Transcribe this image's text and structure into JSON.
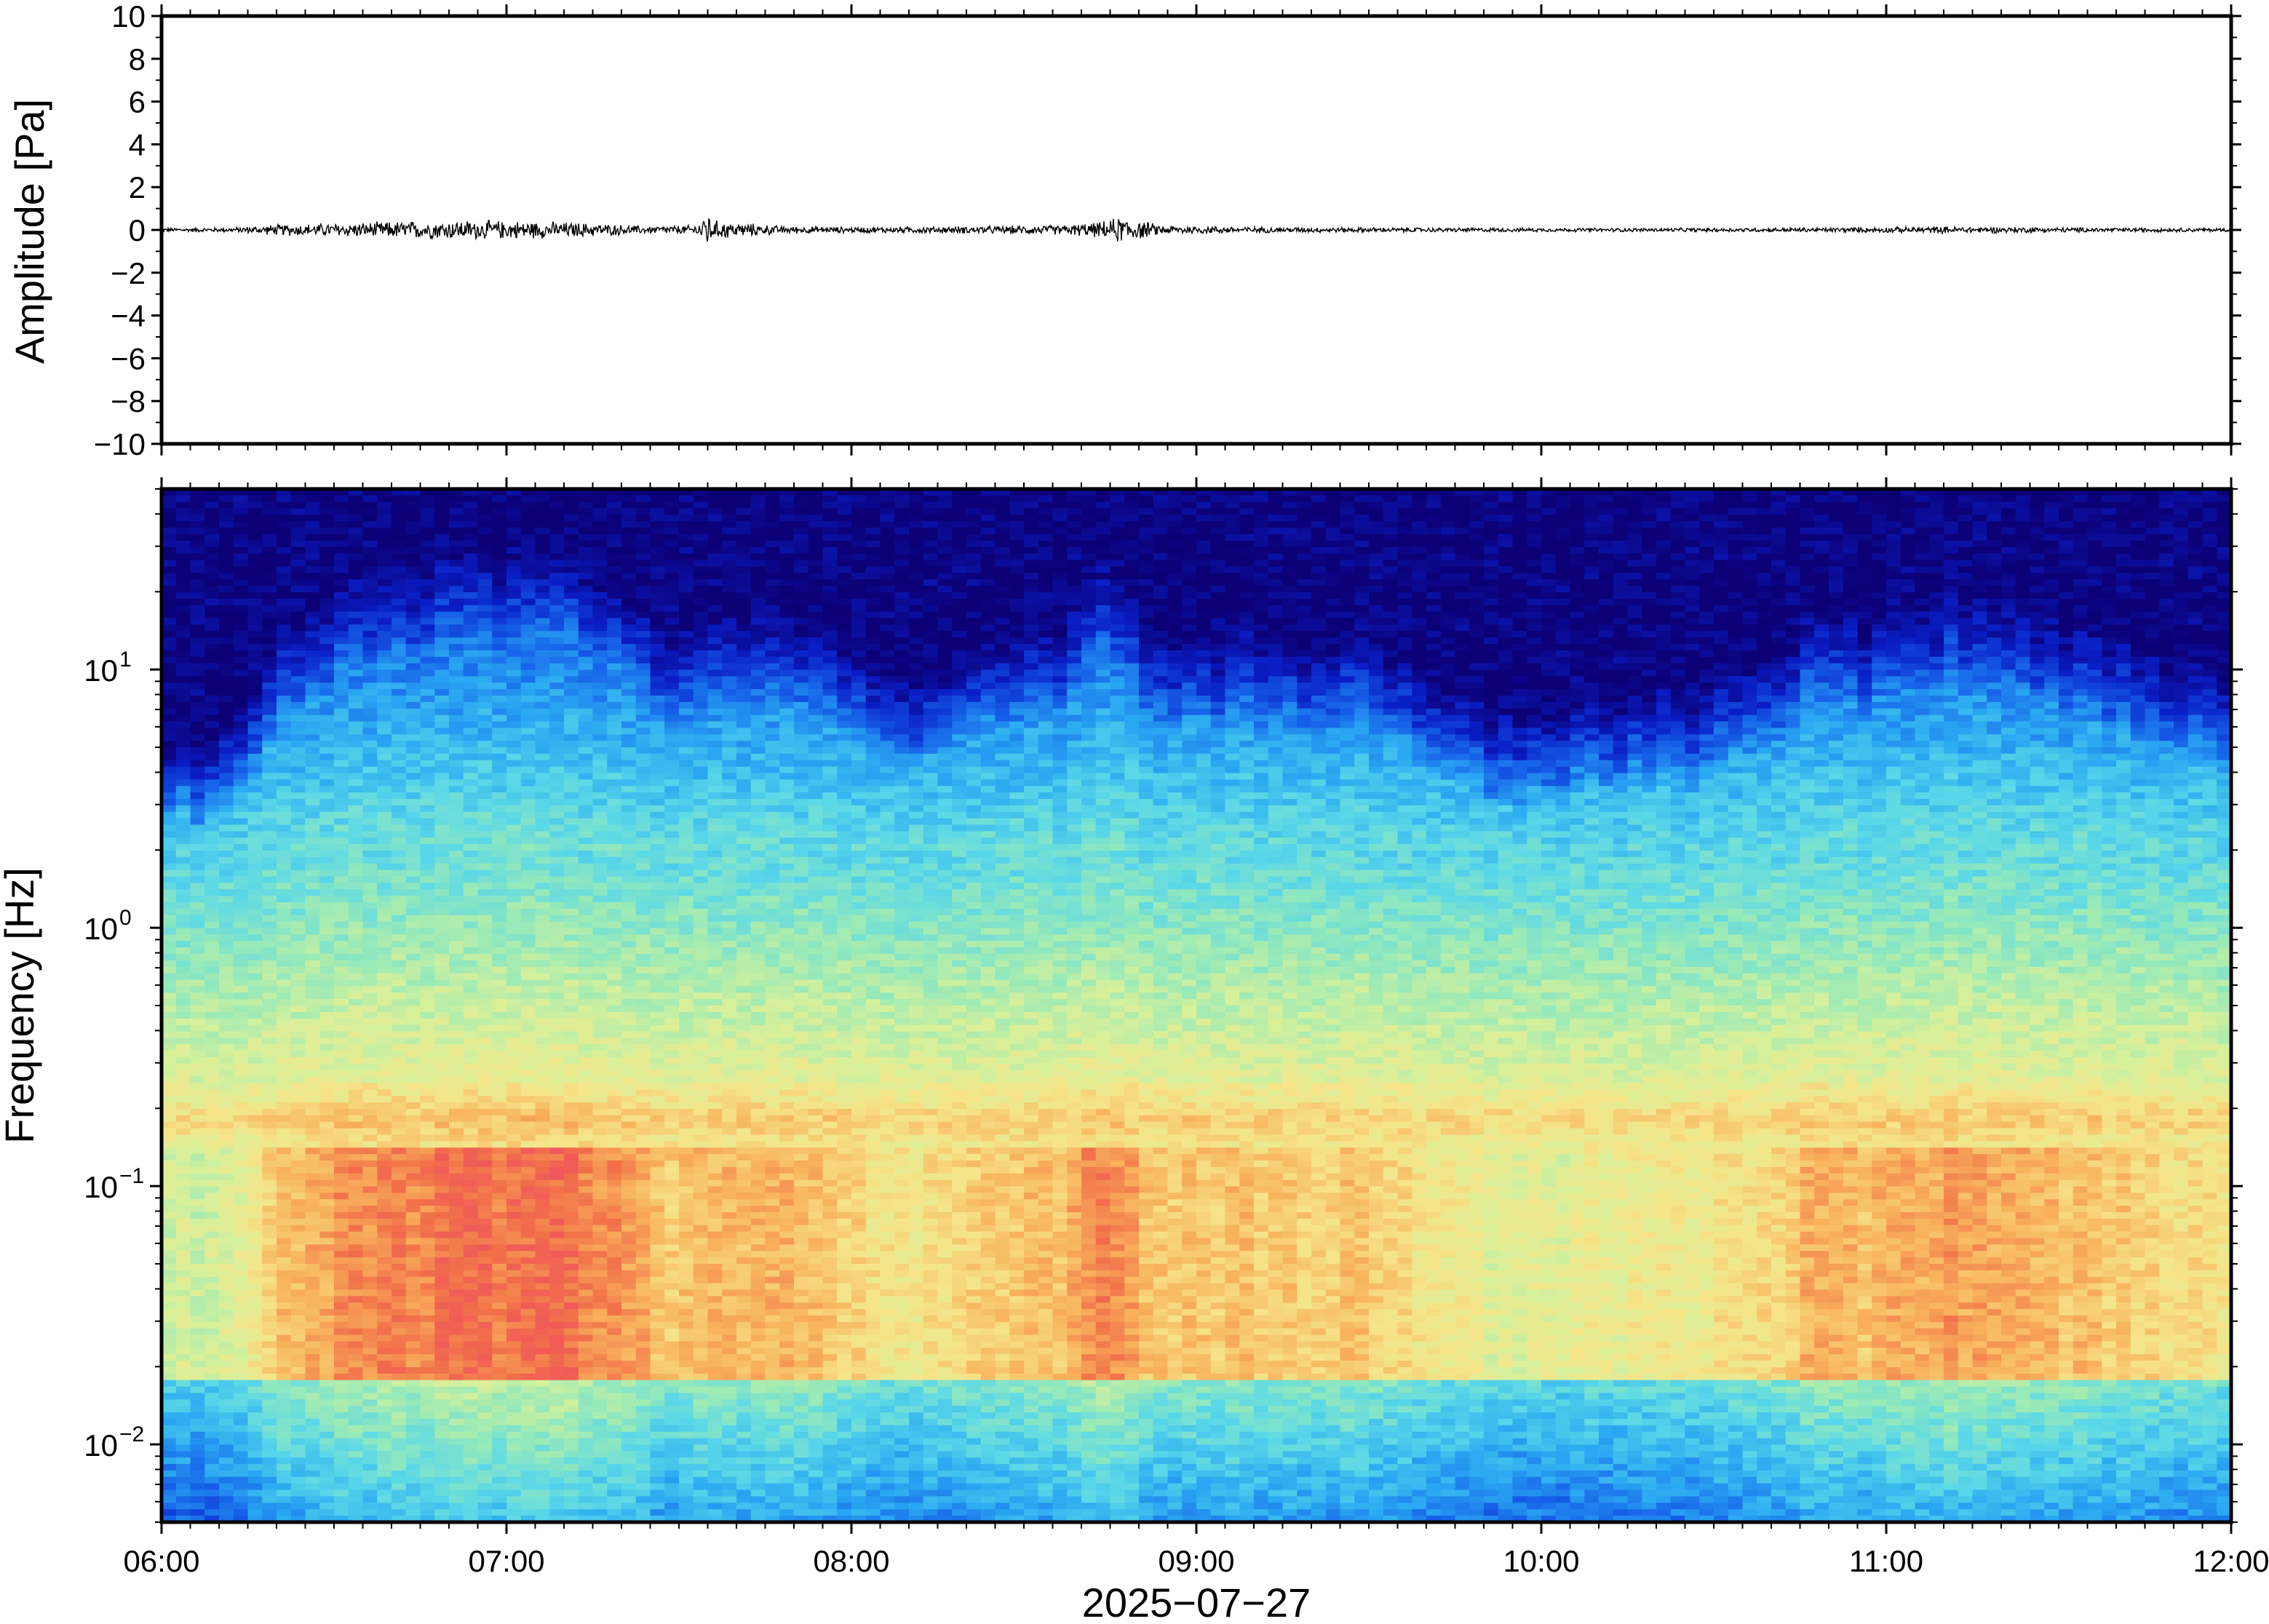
{
  "chart_data": [
    {
      "type": "line",
      "title": "",
      "xlabel": "",
      "ylabel": "Amplitude [Pa]",
      "ylim": [
        -10,
        10
      ],
      "yticks": [
        -10,
        -8,
        -6,
        -4,
        -2,
        0,
        2,
        4,
        6,
        8,
        10
      ],
      "ytick_labels": [
        "−10",
        "−8",
        "−6",
        "−4",
        "−2",
        "0",
        "2",
        "4",
        "6",
        "8",
        "10"
      ],
      "xlim": [
        "06:00",
        "12:00"
      ],
      "line_color": "#000000",
      "series": [
        {
          "x_hours": [
            6.0,
            6.2,
            6.35,
            6.5,
            6.7,
            6.9,
            7.1,
            7.25,
            7.4,
            7.55,
            7.58,
            7.6,
            7.8,
            8.0,
            8.2,
            8.4,
            8.6,
            8.72,
            8.78,
            8.9,
            9.2,
            9.6,
            10.0,
            10.4,
            10.8,
            11.2,
            11.6,
            12.0
          ],
          "envelope_pa": [
            0.1,
            0.12,
            0.3,
            0.35,
            0.45,
            0.5,
            0.45,
            0.35,
            0.2,
            0.25,
            1.0,
            0.5,
            0.2,
            0.15,
            0.18,
            0.2,
            0.25,
            0.4,
            0.7,
            0.25,
            0.15,
            0.12,
            0.1,
            0.1,
            0.12,
            0.18,
            0.12,
            0.1
          ]
        }
      ]
    },
    {
      "type": "heatmap",
      "title": "",
      "xlabel": "2025−07−27",
      "ylabel": "Frequency [Hz]",
      "y_scale": "log",
      "ylim": [
        0.005,
        50
      ],
      "yticks": [
        0.01,
        0.1,
        1,
        10
      ],
      "ytick_labels": [
        {
          "base": "10",
          "exp": "−2"
        },
        {
          "base": "10",
          "exp": "−1"
        },
        {
          "base": "10",
          "exp": "0"
        },
        {
          "base": "10",
          "exp": "1"
        }
      ],
      "x_ticks": [
        "06:00",
        "07:00",
        "08:00",
        "09:00",
        "10:00",
        "11:00",
        "12:00"
      ],
      "colormap": [
        "#0c0077",
        "#0a1dc4",
        "#1660e8",
        "#2aa8f2",
        "#5ad8e8",
        "#98eab8",
        "#d8f09a",
        "#f6e488",
        "#f8b25c",
        "#f2704a",
        "#ee4a62"
      ],
      "time_activity_hours": [
        6.0,
        6.2,
        6.35,
        6.5,
        6.7,
        6.9,
        7.1,
        7.3,
        7.45,
        7.6,
        7.8,
        8.0,
        8.15,
        8.4,
        8.6,
        8.75,
        8.9,
        9.2,
        9.5,
        9.8,
        10.0,
        10.3,
        10.6,
        10.8,
        11.0,
        11.2,
        11.5,
        11.8,
        12.0
      ],
      "time_activity_level": [
        0.1,
        0.15,
        0.55,
        0.75,
        0.85,
        0.9,
        0.95,
        0.8,
        0.55,
        0.6,
        0.65,
        0.5,
        0.3,
        0.55,
        0.6,
        0.9,
        0.5,
        0.55,
        0.5,
        0.25,
        0.2,
        0.3,
        0.35,
        0.65,
        0.6,
        0.75,
        0.6,
        0.45,
        0.35
      ],
      "background_ridge_hz": 0.18
    }
  ]
}
